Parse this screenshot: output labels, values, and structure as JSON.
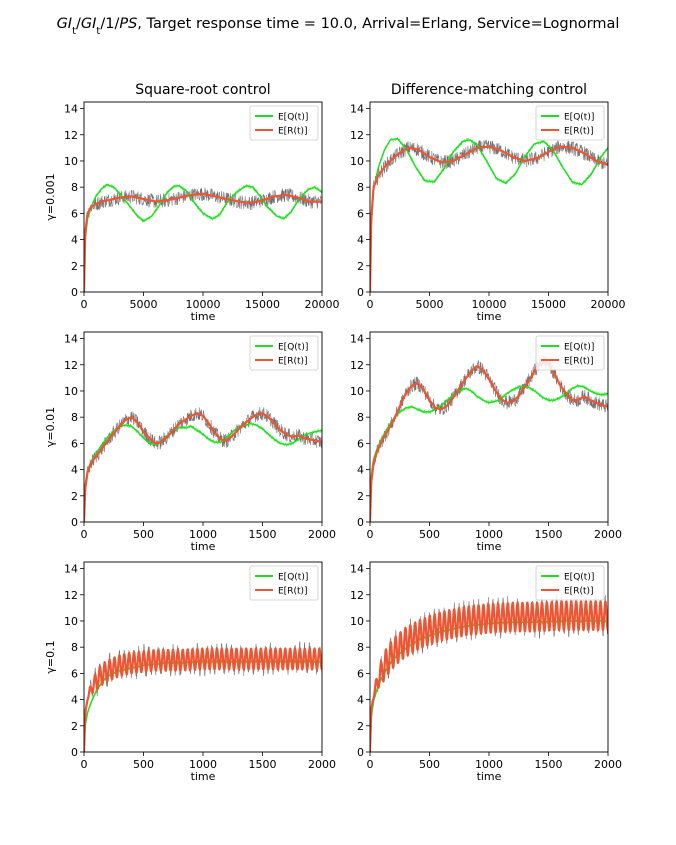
{
  "figure": {
    "title_parts": [
      "GI",
      "t",
      "/GI",
      "t",
      "/1/",
      "PS",
      ", Target response time = 10.0, Arrival=Erlang, Service=Lognormal"
    ],
    "title_plain": "GIt/GIt/1/PS, Target response time = 10.0, Arrival=Erlang, Service=Lognormal",
    "column_titles": [
      "Square-root control",
      "Difference-matching control"
    ],
    "row_labels": [
      "γ=0.001",
      "γ=0.01",
      "γ=0.1"
    ]
  },
  "style": {
    "q_color": "#22dd22",
    "r_color": "#ee5533",
    "band_color": "#444444",
    "axis_color": "#000000"
  },
  "chart_data": [
    {
      "type": "line",
      "panel": "r0c0",
      "title": "Square-root control",
      "ylabel": "γ=0.001",
      "xlabel": "time",
      "xlim": [
        0,
        20000
      ],
      "ylim": [
        0,
        14.5
      ],
      "xticks": [
        0,
        5000,
        10000,
        15000,
        20000
      ],
      "yticks": [
        0,
        2,
        4,
        6,
        8,
        10,
        12,
        14
      ],
      "legend": "top-right",
      "series": [
        {
          "name": "E[Q(t)]",
          "color": "#22dd22",
          "x": [
            0,
            100,
            300,
            600,
            1000,
            1500,
            1900,
            2500,
            3200,
            3800,
            4400,
            5000,
            5700,
            6400,
            7000,
            7600,
            8000,
            8600,
            9200,
            10000,
            10800,
            11400,
            12000,
            12800,
            13600,
            14200,
            14800,
            15400,
            16200,
            16800,
            17400,
            18000,
            18800,
            19400,
            20000
          ],
          "y": [
            0,
            4.0,
            5.6,
            6.5,
            7.3,
            7.9,
            8.2,
            8.0,
            7.3,
            6.6,
            5.9,
            5.4,
            5.8,
            6.7,
            7.6,
            8.1,
            8.1,
            7.7,
            6.9,
            6.0,
            5.6,
            5.9,
            6.8,
            7.6,
            8.1,
            8.0,
            7.3,
            6.5,
            5.8,
            5.6,
            6.1,
            7.0,
            7.8,
            8.0,
            7.6
          ]
        },
        {
          "name": "E[R(t)]",
          "color": "#ee5533",
          "x": [
            0,
            100,
            300,
            600,
            1000,
            1500,
            2000,
            3000,
            4000,
            5000,
            6000,
            7000,
            8000,
            9000,
            10000,
            11000,
            12000,
            13000,
            14000,
            15000,
            16000,
            17000,
            18000,
            19000,
            20000
          ],
          "y": [
            0,
            4.5,
            6.0,
            6.5,
            6.7,
            6.9,
            7.0,
            7.2,
            7.3,
            7.1,
            6.9,
            7.0,
            7.2,
            7.4,
            7.5,
            7.3,
            7.1,
            6.9,
            6.8,
            7.0,
            7.3,
            7.4,
            7.2,
            6.9,
            6.9
          ]
        }
      ]
    },
    {
      "type": "line",
      "panel": "r0c1",
      "title": "Difference-matching control",
      "ylabel": "",
      "xlabel": "time",
      "xlim": [
        0,
        20000
      ],
      "ylim": [
        0,
        14.5
      ],
      "xticks": [
        0,
        5000,
        10000,
        15000,
        20000
      ],
      "yticks": [
        0,
        2,
        4,
        6,
        8,
        10,
        12,
        14
      ],
      "legend": "top-right",
      "series": [
        {
          "name": "E[Q(t)]",
          "color": "#22dd22",
          "x": [
            0,
            100,
            300,
            700,
            1200,
            1700,
            2300,
            3000,
            3800,
            4600,
            5400,
            6200,
            7000,
            7800,
            8400,
            9000,
            9800,
            10600,
            11400,
            12200,
            13000,
            13800,
            14600,
            15400,
            16200,
            17000,
            17800,
            18600,
            19400,
            20000
          ],
          "y": [
            0,
            5.0,
            7.8,
            9.5,
            10.8,
            11.6,
            11.7,
            11.0,
            9.6,
            8.5,
            8.4,
            9.4,
            10.7,
            11.5,
            11.6,
            11.2,
            10.0,
            8.7,
            8.3,
            9.0,
            10.3,
            11.3,
            11.5,
            10.8,
            9.5,
            8.4,
            8.2,
            9.0,
            10.3,
            11.0
          ]
        },
        {
          "name": "E[R(t)]",
          "color": "#ee5533",
          "x": [
            0,
            100,
            300,
            700,
            1200,
            1800,
            2500,
            3200,
            4000,
            5000,
            6000,
            7000,
            8000,
            9000,
            10000,
            11000,
            12000,
            13000,
            14000,
            15000,
            16000,
            17000,
            18000,
            19000,
            20000
          ],
          "y": [
            0,
            5.5,
            8.0,
            8.9,
            9.5,
            10.1,
            10.6,
            11.0,
            10.9,
            10.3,
            9.9,
            10.0,
            10.5,
            11.0,
            11.1,
            10.8,
            10.3,
            10.0,
            10.2,
            10.7,
            11.1,
            11.0,
            10.6,
            10.0,
            9.7
          ]
        }
      ]
    },
    {
      "type": "line",
      "panel": "r1c0",
      "title": "",
      "ylabel": "γ=0.01",
      "xlabel": "time",
      "xlim": [
        0,
        2000
      ],
      "ylim": [
        0,
        14.5
      ],
      "xticks": [
        0,
        500,
        1000,
        1500,
        2000
      ],
      "yticks": [
        0,
        2,
        4,
        6,
        8,
        10,
        12,
        14
      ],
      "legend": "top-right",
      "series": [
        {
          "name": "E[Q(t)]",
          "color": "#22dd22",
          "x": [
            0,
            10,
            30,
            60,
            100,
            150,
            200,
            250,
            300,
            350,
            400,
            450,
            500,
            550,
            600,
            650,
            700,
            750,
            800,
            850,
            900,
            950,
            1000,
            1050,
            1100,
            1150,
            1200,
            1250,
            1300,
            1350,
            1400,
            1450,
            1500,
            1550,
            1600,
            1650,
            1700,
            1750,
            1800,
            1850,
            1900,
            1950,
            2000
          ],
          "y": [
            0,
            2.8,
            4.0,
            4.6,
            5.2,
            5.9,
            6.5,
            6.9,
            7.3,
            7.4,
            7.3,
            6.9,
            6.4,
            6.0,
            5.9,
            6.1,
            6.6,
            7.0,
            7.2,
            7.2,
            7.3,
            7.0,
            6.7,
            6.3,
            6.1,
            6.1,
            6.4,
            6.9,
            7.2,
            7.4,
            7.5,
            7.4,
            7.1,
            6.7,
            6.3,
            6.0,
            5.9,
            6.0,
            6.3,
            6.6,
            6.8,
            6.9,
            7.0
          ]
        },
        {
          "name": "E[R(t)]",
          "color": "#ee5533",
          "x": [
            0,
            10,
            30,
            60,
            100,
            150,
            200,
            250,
            300,
            350,
            400,
            450,
            500,
            550,
            600,
            650,
            700,
            750,
            800,
            850,
            900,
            950,
            1000,
            1050,
            1100,
            1150,
            1200,
            1250,
            1300,
            1350,
            1400,
            1450,
            1500,
            1550,
            1600,
            1650,
            1700,
            1750,
            1800,
            1850,
            1900,
            1950,
            2000
          ],
          "y": [
            0,
            2.5,
            3.8,
            4.5,
            5.0,
            5.6,
            6.2,
            6.8,
            7.3,
            7.8,
            8.0,
            7.6,
            6.9,
            6.4,
            6.0,
            6.1,
            6.5,
            7.0,
            7.5,
            7.8,
            8.1,
            8.3,
            8.1,
            7.5,
            6.8,
            6.3,
            6.2,
            6.6,
            7.1,
            7.5,
            7.9,
            8.2,
            8.3,
            8.0,
            7.5,
            7.0,
            6.7,
            6.5,
            6.6,
            6.4,
            6.3,
            6.2,
            6.1
          ]
        }
      ]
    },
    {
      "type": "line",
      "panel": "r1c1",
      "title": "",
      "ylabel": "",
      "xlabel": "time",
      "xlim": [
        0,
        2000
      ],
      "ylim": [
        0,
        14.5
      ],
      "xticks": [
        0,
        500,
        1000,
        1500,
        2000
      ],
      "yticks": [
        0,
        2,
        4,
        6,
        8,
        10,
        12,
        14
      ],
      "legend": "top-right",
      "series": [
        {
          "name": "E[Q(t)]",
          "color": "#22dd22",
          "x": [
            0,
            10,
            30,
            60,
            100,
            150,
            200,
            250,
            300,
            350,
            400,
            450,
            500,
            550,
            600,
            650,
            700,
            750,
            800,
            850,
            900,
            950,
            1000,
            1050,
            1100,
            1150,
            1200,
            1250,
            1300,
            1350,
            1400,
            1450,
            1500,
            1550,
            1600,
            1650,
            1700,
            1750,
            1800,
            1850,
            1900,
            1950,
            2000
          ],
          "y": [
            0,
            3.5,
            4.8,
            5.6,
            6.4,
            7.2,
            7.9,
            8.4,
            8.7,
            8.8,
            8.6,
            8.4,
            8.4,
            8.6,
            8.9,
            9.3,
            9.7,
            10.0,
            10.2,
            10.0,
            9.6,
            9.3,
            9.1,
            9.2,
            9.4,
            9.8,
            10.1,
            10.3,
            10.4,
            10.2,
            9.9,
            9.5,
            9.3,
            9.3,
            9.5,
            9.8,
            10.2,
            10.4,
            10.3,
            10.0,
            9.8,
            9.7,
            9.8
          ]
        },
        {
          "name": "E[R(t)]",
          "color": "#ee5533",
          "x": [
            0,
            10,
            30,
            60,
            100,
            150,
            200,
            250,
            300,
            350,
            400,
            450,
            500,
            550,
            600,
            650,
            700,
            750,
            800,
            850,
            900,
            950,
            1000,
            1050,
            1100,
            1150,
            1200,
            1250,
            1300,
            1350,
            1400,
            1450,
            1500,
            1550,
            1600,
            1650,
            1700,
            1750,
            1800,
            1850,
            1900,
            1950,
            2000
          ],
          "y": [
            0,
            3.0,
            4.5,
            5.4,
            6.2,
            7.0,
            7.8,
            8.8,
            9.8,
            10.4,
            10.6,
            10.1,
            9.3,
            8.7,
            8.6,
            8.9,
            9.5,
            10.2,
            10.9,
            11.5,
            11.9,
            11.6,
            10.9,
            10.1,
            9.4,
            9.1,
            9.2,
            9.6,
            10.3,
            11.0,
            11.8,
            12.3,
            12.1,
            11.3,
            10.4,
            9.8,
            9.3,
            9.3,
            9.6,
            9.3,
            9.1,
            8.9,
            8.8
          ]
        }
      ]
    },
    {
      "type": "line",
      "panel": "r2c0",
      "title": "",
      "ylabel": "γ=0.1",
      "xlabel": "time",
      "xlim": [
        0,
        2000
      ],
      "ylim": [
        0,
        14.5
      ],
      "xticks": [
        0,
        500,
        1000,
        1500,
        2000
      ],
      "yticks": [
        0,
        2,
        4,
        6,
        8,
        10,
        12,
        14
      ],
      "legend": "top-right",
      "series": [
        {
          "name": "E[Q(t)]",
          "color": "#22dd22",
          "x": [
            0,
            10,
            30,
            60,
            100,
            150,
            200,
            300,
            400,
            500,
            600,
            700,
            800,
            1000,
            1200,
            1400,
            1600,
            1800,
            2000
          ],
          "y": [
            0,
            2.0,
            3.0,
            3.8,
            4.6,
            5.3,
            5.8,
            6.2,
            6.4,
            6.6,
            6.7,
            6.8,
            6.8,
            6.9,
            6.9,
            6.9,
            6.9,
            6.9,
            6.9
          ]
        },
        {
          "name": "E[R(t)]",
          "color": "#ee5533",
          "oscillation_period": 41,
          "oscillation_amplitude": 0.8,
          "x": [
            0,
            10,
            30,
            60,
            100,
            150,
            200,
            300,
            400,
            500,
            600,
            700,
            800,
            1000,
            1200,
            1400,
            1600,
            1800,
            2000
          ],
          "y": [
            0,
            2.8,
            4.2,
            4.8,
            5.4,
            5.9,
            6.2,
            6.6,
            6.8,
            6.9,
            7.0,
            7.0,
            7.0,
            7.1,
            7.1,
            7.1,
            7.1,
            7.1,
            7.1
          ]
        }
      ]
    },
    {
      "type": "line",
      "panel": "r2c1",
      "title": "",
      "ylabel": "",
      "xlabel": "time",
      "xlim": [
        0,
        2000
      ],
      "ylim": [
        0,
        14.5
      ],
      "xticks": [
        0,
        500,
        1000,
        1500,
        2000
      ],
      "yticks": [
        0,
        2,
        4,
        6,
        8,
        10,
        12,
        14
      ],
      "legend": "top-right",
      "series": [
        {
          "name": "E[Q(t)]",
          "color": "#22dd22",
          "x": [
            0,
            10,
            30,
            60,
            100,
            150,
            200,
            300,
            400,
            500,
            600,
            700,
            800,
            1000,
            1200,
            1400,
            1600,
            1800,
            2000
          ],
          "y": [
            0,
            2.6,
            3.9,
            4.8,
            5.7,
            6.5,
            7.1,
            7.9,
            8.5,
            8.9,
            9.2,
            9.4,
            9.6,
            9.8,
            9.9,
            9.9,
            10.0,
            10.0,
            10.0
          ]
        },
        {
          "name": "E[R(t)]",
          "color": "#ee5533",
          "oscillation_period": 41,
          "oscillation_amplitude": 1.1,
          "x": [
            0,
            10,
            30,
            60,
            100,
            150,
            200,
            300,
            400,
            500,
            600,
            700,
            800,
            1000,
            1200,
            1400,
            1600,
            1800,
            2000
          ],
          "y": [
            0,
            3.0,
            4.4,
            5.3,
            6.2,
            7.0,
            7.6,
            8.4,
            8.9,
            9.3,
            9.6,
            9.8,
            10.0,
            10.2,
            10.3,
            10.3,
            10.4,
            10.4,
            10.4
          ]
        }
      ]
    }
  ]
}
